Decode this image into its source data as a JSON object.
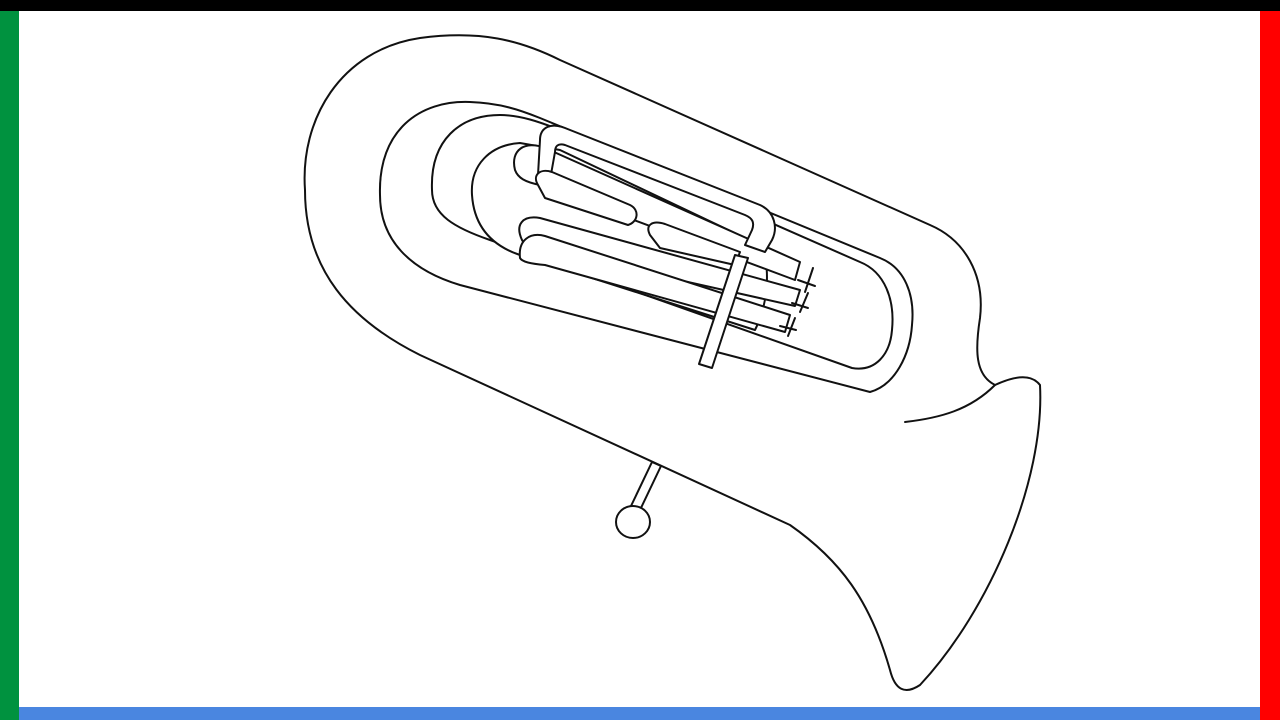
{
  "subject_icon": "tuba-outline-drawing",
  "colors": {
    "frame_top": "#000000",
    "frame_left": "#00923f",
    "frame_right": "#ff0000",
    "frame_bottom": "#4a86e0",
    "background": "#ffffff",
    "line": "#111111"
  }
}
